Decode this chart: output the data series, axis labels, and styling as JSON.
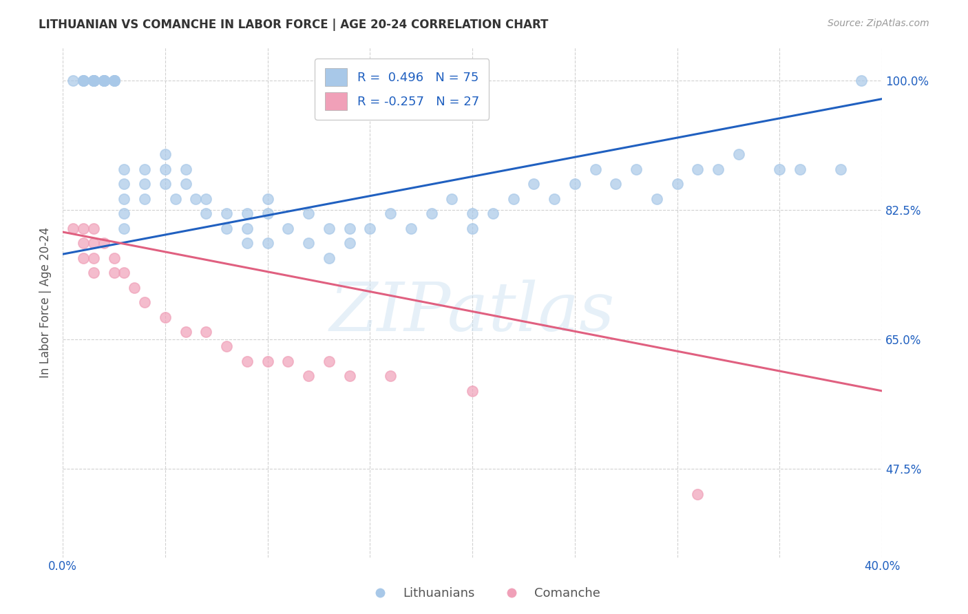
{
  "title": "LITHUANIAN VS COMANCHE IN LABOR FORCE | AGE 20-24 CORRELATION CHART",
  "source": "Source: ZipAtlas.com",
  "ylabel": "In Labor Force | Age 20-24",
  "ytick_labels": [
    "100.0%",
    "82.5%",
    "65.0%",
    "47.5%"
  ],
  "ytick_values": [
    1.0,
    0.825,
    0.65,
    0.475
  ],
  "xlim": [
    0.0,
    0.4
  ],
  "ylim": [
    0.355,
    1.045
  ],
  "watermark": "ZIPatlas",
  "legend_R_blue": "R =  0.496",
  "legend_N_blue": "N = 75",
  "legend_R_pink": "R = -0.257",
  "legend_N_pink": "N = 27",
  "blue_color": "#a8c8e8",
  "pink_color": "#f0a0b8",
  "line_blue": "#2060c0",
  "line_pink": "#e06080",
  "legend_text_color": "#2060c0",
  "title_color": "#333333",
  "axis_label_color": "#2060c0",
  "grid_color": "#cccccc",
  "blue_scatter_x": [
    0.005,
    0.01,
    0.01,
    0.01,
    0.015,
    0.015,
    0.015,
    0.015,
    0.015,
    0.015,
    0.02,
    0.02,
    0.02,
    0.02,
    0.02,
    0.025,
    0.025,
    0.025,
    0.025,
    0.03,
    0.03,
    0.03,
    0.03,
    0.03,
    0.04,
    0.04,
    0.04,
    0.05,
    0.05,
    0.05,
    0.055,
    0.06,
    0.06,
    0.065,
    0.07,
    0.07,
    0.08,
    0.08,
    0.09,
    0.09,
    0.09,
    0.1,
    0.1,
    0.1,
    0.11,
    0.12,
    0.12,
    0.13,
    0.13,
    0.14,
    0.14,
    0.15,
    0.16,
    0.17,
    0.18,
    0.19,
    0.2,
    0.2,
    0.21,
    0.22,
    0.23,
    0.24,
    0.25,
    0.26,
    0.27,
    0.28,
    0.29,
    0.3,
    0.31,
    0.32,
    0.33,
    0.35,
    0.36,
    0.38,
    0.39
  ],
  "blue_scatter_y": [
    1.0,
    1.0,
    1.0,
    1.0,
    1.0,
    1.0,
    1.0,
    1.0,
    1.0,
    1.0,
    1.0,
    1.0,
    1.0,
    1.0,
    1.0,
    1.0,
    1.0,
    1.0,
    1.0,
    0.88,
    0.86,
    0.84,
    0.82,
    0.8,
    0.88,
    0.86,
    0.84,
    0.88,
    0.86,
    0.9,
    0.84,
    0.86,
    0.88,
    0.84,
    0.84,
    0.82,
    0.8,
    0.82,
    0.78,
    0.82,
    0.8,
    0.78,
    0.82,
    0.84,
    0.8,
    0.78,
    0.82,
    0.8,
    0.76,
    0.78,
    0.8,
    0.8,
    0.82,
    0.8,
    0.82,
    0.84,
    0.8,
    0.82,
    0.82,
    0.84,
    0.86,
    0.84,
    0.86,
    0.88,
    0.86,
    0.88,
    0.84,
    0.86,
    0.88,
    0.88,
    0.9,
    0.88,
    0.88,
    0.88,
    1.0
  ],
  "pink_scatter_x": [
    0.005,
    0.01,
    0.01,
    0.01,
    0.015,
    0.015,
    0.015,
    0.015,
    0.02,
    0.025,
    0.025,
    0.03,
    0.035,
    0.04,
    0.05,
    0.06,
    0.07,
    0.08,
    0.09,
    0.1,
    0.11,
    0.12,
    0.13,
    0.14,
    0.16,
    0.2,
    0.31
  ],
  "pink_scatter_y": [
    0.8,
    0.8,
    0.78,
    0.76,
    0.8,
    0.78,
    0.76,
    0.74,
    0.78,
    0.76,
    0.74,
    0.74,
    0.72,
    0.7,
    0.68,
    0.66,
    0.66,
    0.64,
    0.62,
    0.62,
    0.62,
    0.6,
    0.62,
    0.6,
    0.6,
    0.58,
    0.44
  ],
  "blue_line_x": [
    0.0,
    0.4
  ],
  "blue_line_y": [
    0.765,
    0.975
  ],
  "pink_line_x": [
    0.0,
    0.4
  ],
  "pink_line_y": [
    0.795,
    0.58
  ]
}
